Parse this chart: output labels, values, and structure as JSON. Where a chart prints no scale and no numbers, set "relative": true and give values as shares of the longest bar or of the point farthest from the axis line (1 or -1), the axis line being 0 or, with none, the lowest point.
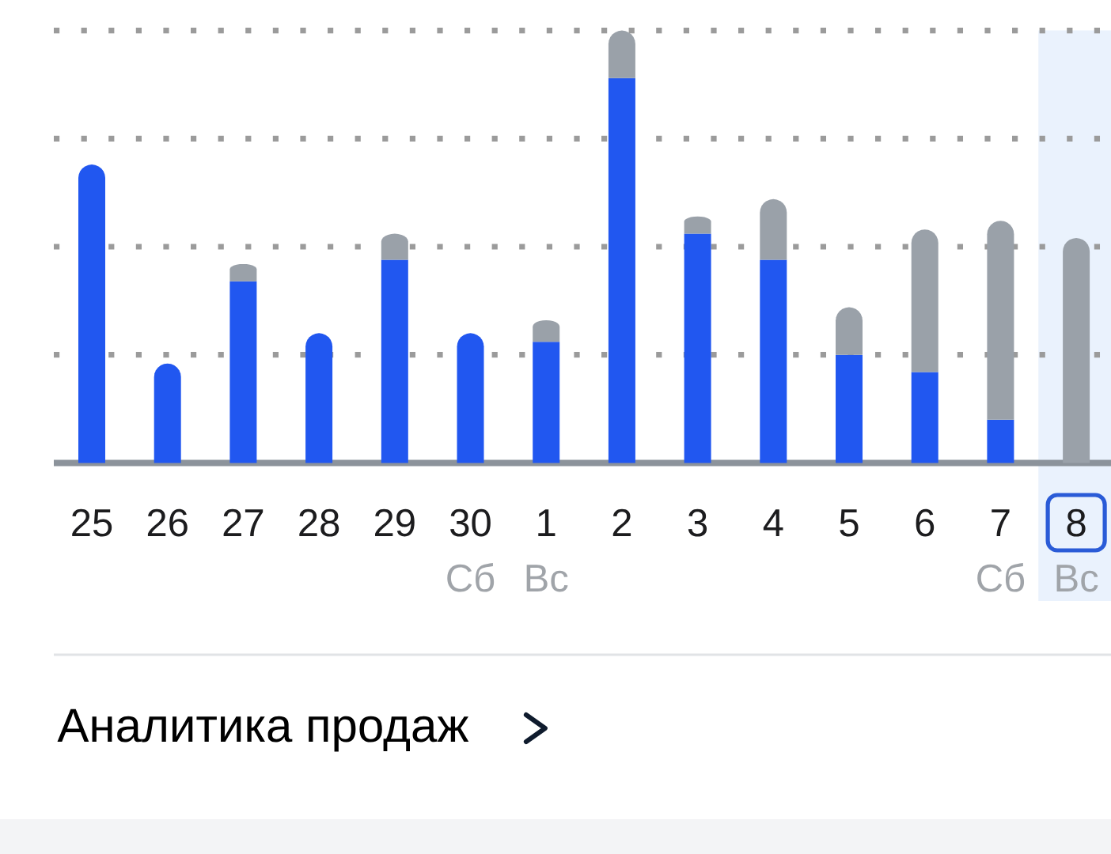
{
  "chart_data": {
    "type": "bar",
    "relative": true,
    "stacked": true,
    "categories": [
      "25",
      "26",
      "27",
      "28",
      "29",
      "30",
      "1",
      "2",
      "3",
      "4",
      "5",
      "6",
      "7",
      "8"
    ],
    "series": [
      {
        "color": "#2157f0",
        "values": [
          0.69,
          0.23,
          0.42,
          0.3,
          0.47,
          0.3,
          0.28,
          0.89,
          0.53,
          0.47,
          0.25,
          0.21,
          0.1,
          null
        ]
      },
      {
        "color": "#9aa1a9",
        "values": [
          null,
          null,
          0.04,
          null,
          0.06,
          null,
          0.05,
          0.11,
          0.04,
          0.14,
          0.11,
          0.33,
          0.46,
          0.52
        ]
      }
    ],
    "grid": "y",
    "bands": [
      {
        "axis": "x",
        "from": "8",
        "to": "8",
        "color": "#eaf2fd"
      }
    ],
    "annotations": [
      "Сб",
      "Вс",
      "Сб",
      "Вс",
      "Аналитика продаж"
    ]
  }
}
